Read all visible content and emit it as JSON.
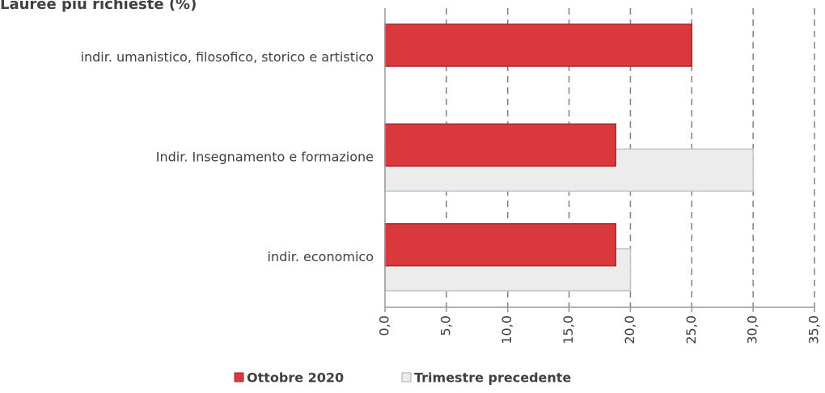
{
  "chart_data": {
    "type": "hbar",
    "title": "Lauree più richieste (%)",
    "categories": [
      "indir. umanistico, filosofico, storico e artistico",
      "Indir. Insegnamento e formazione",
      "indir. economico"
    ],
    "series": [
      {
        "name": "Ottobre 2020",
        "color": "#d9383c",
        "values": [
          25,
          18.8,
          18.8
        ]
      },
      {
        "name": "Trimestre precedente",
        "color": "#ececec",
        "values": [
          null,
          30,
          20
        ]
      }
    ],
    "xlim": [
      0,
      35
    ],
    "xticks": [
      {
        "value": 0,
        "label": "0,0"
      },
      {
        "value": 5,
        "label": "5,0"
      },
      {
        "value": 10,
        "label": "10,0"
      },
      {
        "value": 15,
        "label": "15,0"
      },
      {
        "value": 20,
        "label": "20,0"
      },
      {
        "value": 25,
        "label": "25,0"
      },
      {
        "value": 30,
        "label": "30,0"
      },
      {
        "value": 35,
        "label": "35,0"
      }
    ],
    "grid": true,
    "legend": "bottom"
  }
}
